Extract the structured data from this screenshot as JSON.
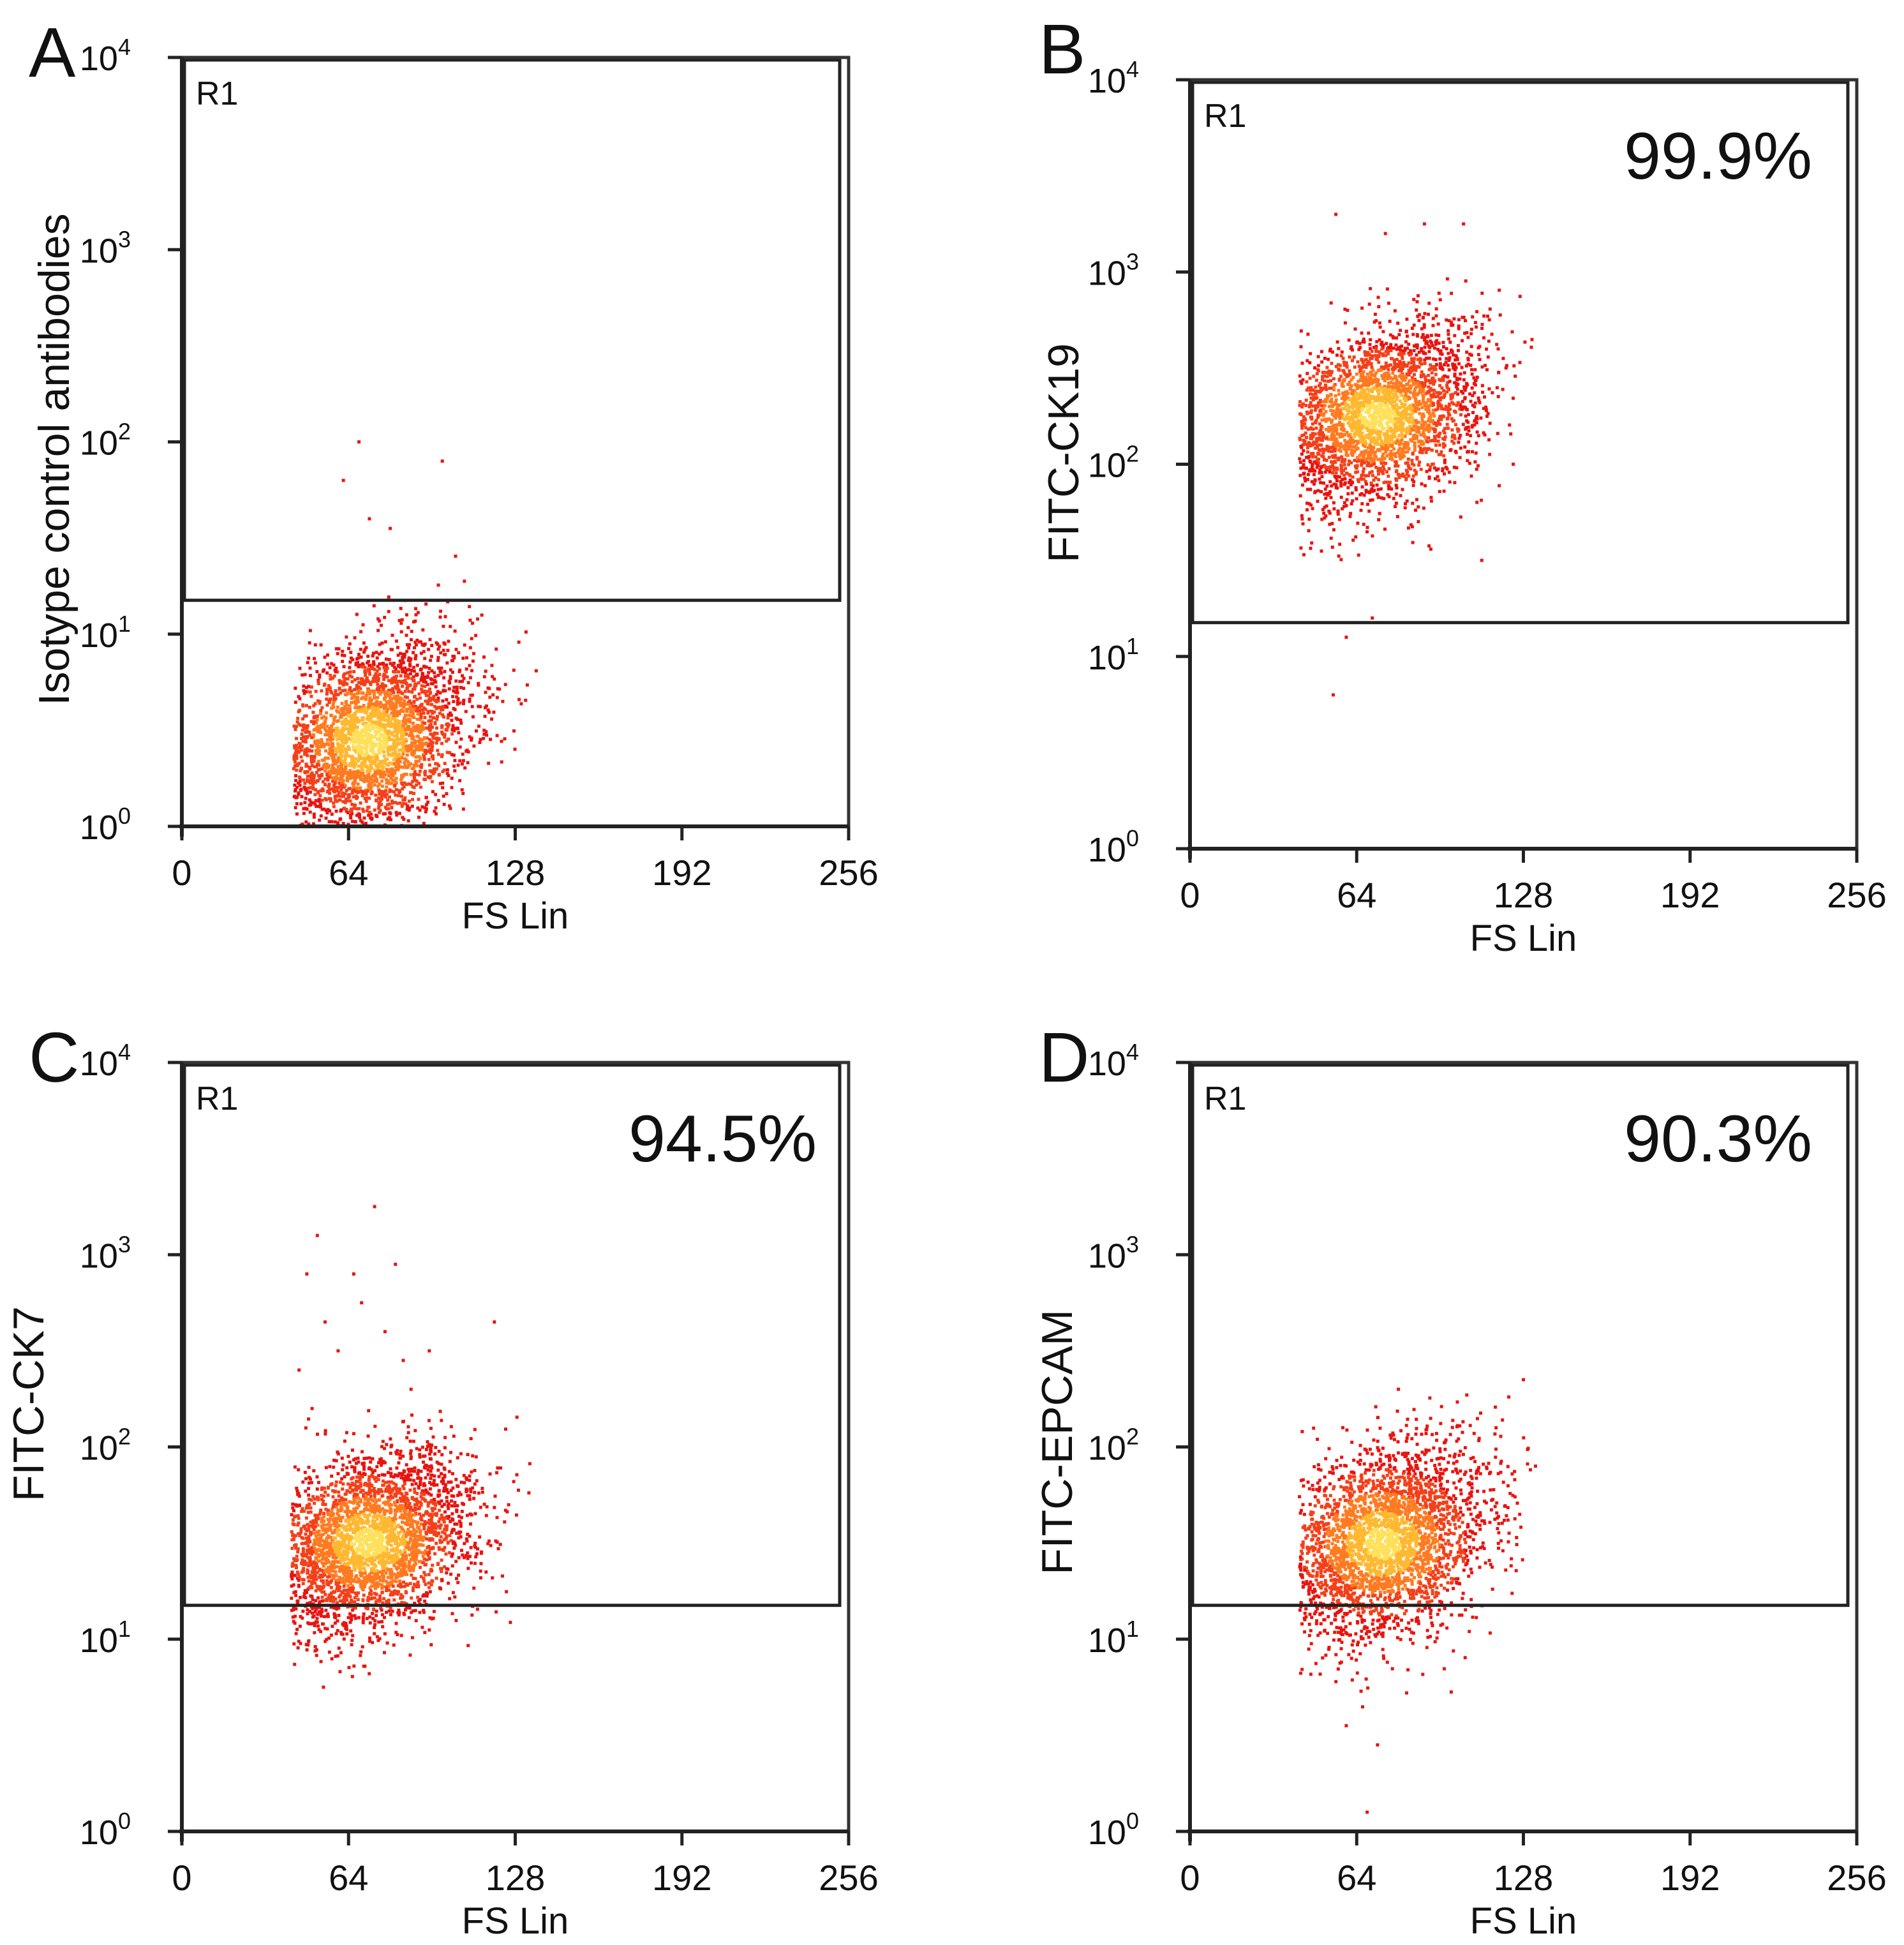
{
  "figure": {
    "panel_letters": [
      "A",
      "B",
      "C",
      "D"
    ],
    "gate_label": "R1",
    "x_axis_label": "FS Lin",
    "x_ticks": [
      "0",
      "64",
      "128",
      "192",
      "256"
    ],
    "y_tick_base": "10",
    "y_tick_exponents": [
      "0",
      "1",
      "2",
      "3",
      "4"
    ],
    "point_colors": [
      "#e81410",
      "#f4401a",
      "#ff7a20",
      "#ffb830",
      "#ffe05a"
    ]
  },
  "chart_data": [
    {
      "type": "scatter",
      "panel": "A",
      "title": "",
      "xlabel": "FS Lin",
      "ylabel": "Isotype control antibodies",
      "xlim": [
        0,
        256
      ],
      "ylim": [
        1,
        10000
      ],
      "y_scale": "log",
      "x_ticks": [
        0,
        64,
        128,
        192,
        256
      ],
      "gate": {
        "name": "R1",
        "x_range": [
          0,
          256
        ],
        "y_range": [
          15,
          10000
        ]
      },
      "percent_label": "",
      "population": {
        "center_fs": 72,
        "center_log10_fl": 0.45,
        "spread_fs": 20,
        "spread_log10": 0.24,
        "fs_range": [
          43,
          138
        ],
        "log10_range": [
          0,
          1.45
        ],
        "count": 3200
      },
      "outliers": [
        [
          62,
          1.8
        ],
        [
          68,
          2.0
        ],
        [
          72,
          1.6
        ],
        [
          100,
          1.9
        ],
        [
          80,
          1.55
        ]
      ]
    },
    {
      "type": "scatter",
      "panel": "B",
      "title": "",
      "xlabel": "FS Lin",
      "ylabel": "FITC-CK19",
      "xlim": [
        0,
        256
      ],
      "ylim": [
        1,
        10000
      ],
      "y_scale": "log",
      "x_ticks": [
        0,
        64,
        128,
        192,
        256
      ],
      "gate": {
        "name": "R1",
        "x_range": [
          0,
          256
        ],
        "y_range": [
          15,
          10000
        ]
      },
      "percent_label": "99.9%",
      "population": {
        "center_fs": 72,
        "center_log10_fl": 2.25,
        "spread_fs": 20,
        "spread_log10": 0.22,
        "fs_range": [
          42,
          132
        ],
        "log10_range": [
          1.5,
          3.0
        ],
        "count": 3000
      },
      "outliers": [
        [
          56,
          3.3
        ],
        [
          75,
          3.2
        ],
        [
          90,
          3.25
        ],
        [
          105,
          3.25
        ],
        [
          60,
          1.1
        ],
        [
          55,
          0.8
        ],
        [
          70,
          1.2
        ],
        [
          112,
          1.5
        ]
      ]
    },
    {
      "type": "scatter",
      "panel": "C",
      "title": "",
      "xlabel": "FS Lin",
      "ylabel": "FITC-CK7",
      "xlim": [
        0,
        256
      ],
      "ylim": [
        1,
        10000
      ],
      "y_scale": "log",
      "x_ticks": [
        0,
        64,
        128,
        192,
        256
      ],
      "gate": {
        "name": "R1",
        "x_range": [
          0,
          256
        ],
        "y_range": [
          15,
          10000
        ]
      },
      "percent_label": "94.5%",
      "population": {
        "center_fs": 72,
        "center_log10_fl": 1.5,
        "spread_fs": 20,
        "spread_log10": 0.22,
        "fs_range": [
          42,
          134
        ],
        "log10_range": [
          0.75,
          2.2
        ],
        "count": 3200
      },
      "outliers": [
        [
          52,
          3.1
        ],
        [
          48,
          2.9
        ],
        [
          74,
          3.25
        ],
        [
          69,
          2.75
        ],
        [
          82,
          2.95
        ],
        [
          60,
          2.5
        ],
        [
          78,
          2.6
        ],
        [
          45,
          2.4
        ],
        [
          55,
          2.65
        ],
        [
          88,
          2.3
        ],
        [
          120,
          2.65
        ],
        [
          95,
          2.5
        ],
        [
          50,
          2.2
        ],
        [
          66,
          2.9
        ],
        [
          85,
          2.45
        ]
      ]
    },
    {
      "type": "scatter",
      "panel": "D",
      "title": "",
      "xlabel": "FS Lin",
      "ylabel": "FITC-EPCAM",
      "xlim": [
        0,
        256
      ],
      "ylim": [
        1,
        10000
      ],
      "y_scale": "log",
      "x_ticks": [
        0,
        64,
        128,
        192,
        256
      ],
      "gate": {
        "name": "R1",
        "x_range": [
          0,
          256
        ],
        "y_range": [
          15,
          10000
        ]
      },
      "percent_label": "90.3%",
      "population": {
        "center_fs": 74,
        "center_log10_fl": 1.5,
        "spread_fs": 20,
        "spread_log10": 0.24,
        "fs_range": [
          42,
          134
        ],
        "log10_range": [
          0.6,
          2.3
        ],
        "count": 3200
      },
      "outliers": [
        [
          68,
          0.1
        ],
        [
          60,
          0.55
        ],
        [
          72,
          0.45
        ],
        [
          128,
          2.35
        ],
        [
          80,
          2.3
        ]
      ]
    }
  ]
}
